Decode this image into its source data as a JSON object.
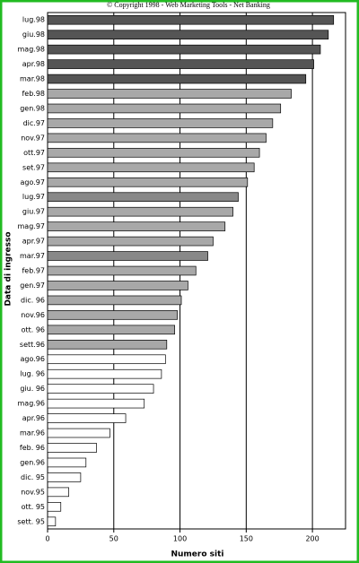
{
  "chart_data": {
    "type": "barh",
    "title": "© Copyright 1998 - Web Marketing Tools - Net Banking",
    "x_label": "Numero siti",
    "y_label": "Data di ingresso",
    "categories": [
      "lug.98",
      "giu.98",
      "mag.98",
      "apr.98",
      "mar.98",
      "feb.98",
      "gen.98",
      "dic.97",
      "nov.97",
      "ott.97",
      "set.97",
      "ago.97",
      "lug.97",
      "giu.97",
      "mag.97",
      "apr.97",
      "mar.97",
      "feb.97",
      "gen.97",
      "dic. 96",
      "nov.96",
      "ott. 96",
      "sett.96",
      "ago.96",
      "lug. 96",
      "giu. 96",
      "mag.96",
      "apr.96",
      "mar.96",
      "feb. 96",
      "gen.96",
      "dic. 95",
      "nov.95",
      "ott. 95",
      "sett. 95"
    ],
    "values": [
      216,
      212,
      206,
      201,
      195,
      184,
      176,
      170,
      165,
      160,
      156,
      151,
      144,
      140,
      134,
      125,
      121,
      112,
      106,
      101,
      98,
      96,
      90,
      89,
      86,
      80,
      73,
      59,
      47,
      37,
      29,
      25,
      16,
      10,
      6
    ],
    "colors": [
      "#555555",
      "#555555",
      "#555555",
      "#555555",
      "#555555",
      "#a8a8a8",
      "#a8a8a8",
      "#a8a8a8",
      "#a8a8a8",
      "#a8a8a8",
      "#a8a8a8",
      "#a8a8a8",
      "#888888",
      "#a8a8a8",
      "#a8a8a8",
      "#a8a8a8",
      "#888888",
      "#a8a8a8",
      "#a8a8a8",
      "#a8a8a8",
      "#a8a8a8",
      "#a8a8a8",
      "#a8a8a8",
      "#ffffff",
      "#ffffff",
      "#ffffff",
      "#ffffff",
      "#ffffff",
      "#ffffff",
      "#ffffff",
      "#ffffff",
      "#ffffff",
      "#ffffff",
      "#ffffff",
      "#ffffff"
    ],
    "xlim": [
      0,
      225
    ],
    "xticks": [
      0,
      50,
      100,
      150,
      200
    ],
    "grid": true
  }
}
